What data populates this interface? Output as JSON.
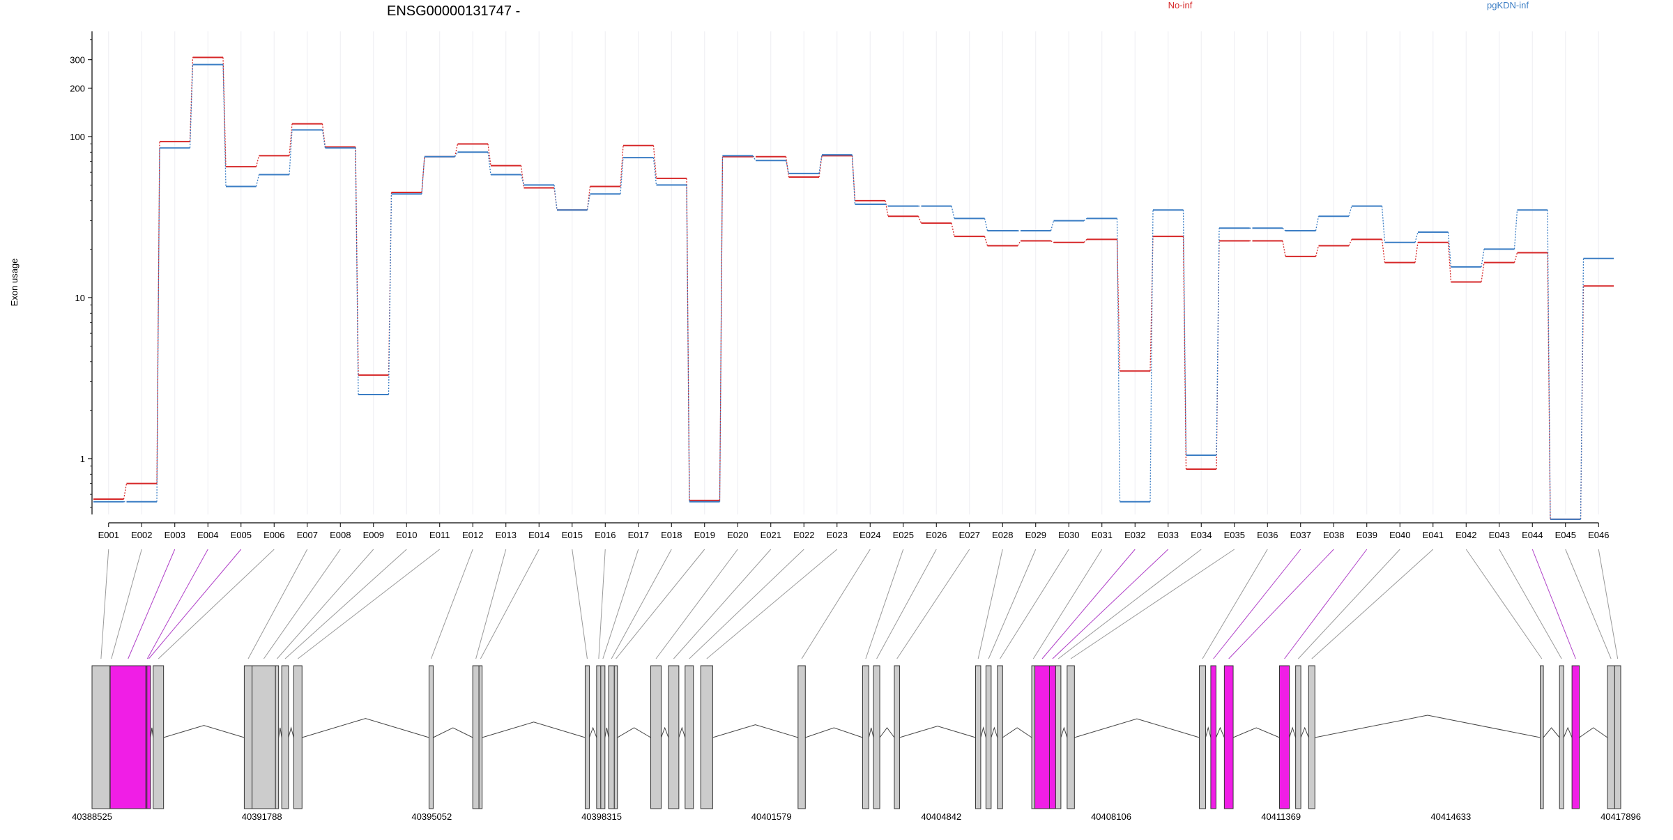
{
  "chart_data": {
    "type": "line",
    "title": "ENSG00000131747 -",
    "ylabel": "Exon usage",
    "xlabel": "",
    "yscale": "log",
    "ylim": [
      0.45,
      450
    ],
    "grid": true,
    "legend_position": "top",
    "y_ticks": [
      {
        "value": 1,
        "label": "1"
      },
      {
        "value": 10,
        "label": "10"
      },
      {
        "value": 100,
        "label": "100"
      },
      {
        "value": 200,
        "label": "200"
      },
      {
        "value": 300,
        "label": "300"
      }
    ],
    "categories": [
      "E001",
      "E002",
      "E003",
      "E004",
      "E005",
      "E006",
      "E007",
      "E008",
      "E009",
      "E010",
      "E011",
      "E012",
      "E013",
      "E014",
      "E015",
      "E016",
      "E017",
      "E018",
      "E019",
      "E020",
      "E021",
      "E022",
      "E023",
      "E024",
      "E025",
      "E026",
      "E027",
      "E028",
      "E029",
      "E030",
      "E031",
      "E032",
      "E033",
      "E034",
      "E035",
      "E036",
      "E037",
      "E038",
      "E039",
      "E040",
      "E041",
      "E042",
      "E043",
      "E044",
      "E045",
      "E046"
    ],
    "series": [
      {
        "name": "No-inf",
        "color": "#d62728",
        "values": [
          0.56,
          0.7,
          93,
          310,
          65,
          76,
          120,
          86,
          3.3,
          45,
          75,
          90,
          66,
          48,
          35,
          49,
          88,
          55,
          0.55,
          75,
          75,
          56,
          76,
          40,
          32,
          29,
          24,
          21,
          22.5,
          22,
          23,
          3.5,
          24,
          0.86,
          22.5,
          22.5,
          18,
          21,
          23,
          16.5,
          22,
          12.5,
          16.5,
          19,
          0.42,
          11.8
        ]
      },
      {
        "name": "pgKDN-inf",
        "color": "#3a7dc4",
        "values": [
          0.54,
          0.54,
          85,
          280,
          49,
          58,
          110,
          85,
          2.5,
          44,
          75,
          80,
          58,
          50,
          35,
          44,
          74,
          50,
          0.54,
          76,
          71,
          59,
          77,
          38,
          37,
          37,
          31,
          26,
          26,
          30,
          31,
          0.54,
          35,
          1.05,
          27,
          27,
          26,
          32,
          37,
          22,
          25.5,
          15.5,
          20,
          35,
          0.42,
          17.5
        ]
      }
    ],
    "gene_model": {
      "coordinate_labels": [
        "40388525",
        "40391788",
        "40395052",
        "40398315",
        "40401579",
        "40404842",
        "40408106",
        "40411369",
        "40414633",
        "40417896"
      ],
      "coordinate_range": [
        40388525,
        40417896
      ],
      "highlight_color": "#f01ee6",
      "exon_fill": "#cccccc",
      "exons": [
        {
          "id": "E001",
          "start": 40388525,
          "end": 40388870,
          "highlighted": false
        },
        {
          "id": "E002",
          "start": 40388870,
          "end": 40388875,
          "highlighted": false
        },
        {
          "id": "E003",
          "start": 40388875,
          "end": 40389560,
          "highlighted": true
        },
        {
          "id": "E004",
          "start": 40389560,
          "end": 40389580,
          "highlighted": true
        },
        {
          "id": "E005",
          "start": 40389580,
          "end": 40389650,
          "highlighted": true
        },
        {
          "id": "E006",
          "start": 40389700,
          "end": 40389900,
          "highlighted": false
        },
        {
          "id": "E007",
          "start": 40391450,
          "end": 40391600,
          "highlighted": false
        },
        {
          "id": "E008",
          "start": 40391600,
          "end": 40392050,
          "highlighted": false
        },
        {
          "id": "E009",
          "start": 40392050,
          "end": 40392110,
          "highlighted": false
        },
        {
          "id": "E010",
          "start": 40392170,
          "end": 40392300,
          "highlighted": false
        },
        {
          "id": "E011",
          "start": 40392400,
          "end": 40392560,
          "highlighted": false
        },
        {
          "id": "E012",
          "start": 40395000,
          "end": 40395080,
          "highlighted": false
        },
        {
          "id": "E013",
          "start": 40395840,
          "end": 40395960,
          "highlighted": false
        },
        {
          "id": "E014",
          "start": 40395960,
          "end": 40396020,
          "highlighted": false
        },
        {
          "id": "E015",
          "start": 40398000,
          "end": 40398080,
          "highlighted": false
        },
        {
          "id": "E016",
          "start": 40398220,
          "end": 40398300,
          "highlighted": false
        },
        {
          "id": "E017",
          "start": 40398300,
          "end": 40398380,
          "highlighted": false
        },
        {
          "id": "E018",
          "start": 40398450,
          "end": 40398560,
          "highlighted": false
        },
        {
          "id": "E019",
          "start": 40398560,
          "end": 40398620,
          "highlighted": false
        },
        {
          "id": "E020",
          "start": 40399260,
          "end": 40399460,
          "highlighted": false
        },
        {
          "id": "E021",
          "start": 40399600,
          "end": 40399800,
          "highlighted": false
        },
        {
          "id": "E022",
          "start": 40399920,
          "end": 40400080,
          "highlighted": false
        },
        {
          "id": "E023",
          "start": 40400220,
          "end": 40400450,
          "highlighted": false
        },
        {
          "id": "E024",
          "start": 40402090,
          "end": 40402230,
          "highlighted": false
        },
        {
          "id": "E025",
          "start": 40403330,
          "end": 40403450,
          "highlighted": false
        },
        {
          "id": "E026",
          "start": 40403540,
          "end": 40403660,
          "highlighted": false
        },
        {
          "id": "E027",
          "start": 40403940,
          "end": 40404040,
          "highlighted": false
        },
        {
          "id": "E028",
          "start": 40405500,
          "end": 40405600,
          "highlighted": false
        },
        {
          "id": "E029",
          "start": 40405700,
          "end": 40405800,
          "highlighted": false
        },
        {
          "id": "E030",
          "start": 40405920,
          "end": 40406020,
          "highlighted": false
        },
        {
          "id": "E031",
          "start": 40406580,
          "end": 40406640,
          "highlighted": false
        },
        {
          "id": "E032",
          "start": 40406640,
          "end": 40406920,
          "highlighted": true
        },
        {
          "id": "E033",
          "start": 40406920,
          "end": 40407040,
          "highlighted": true
        },
        {
          "id": "E034",
          "start": 40407040,
          "end": 40407140,
          "highlighted": false
        },
        {
          "id": "E035",
          "start": 40407260,
          "end": 40407400,
          "highlighted": false
        },
        {
          "id": "E036",
          "start": 40409800,
          "end": 40409920,
          "highlighted": false
        },
        {
          "id": "E037",
          "start": 40410020,
          "end": 40410120,
          "highlighted": true
        },
        {
          "id": "E038",
          "start": 40410280,
          "end": 40410450,
          "highlighted": true
        },
        {
          "id": "E039",
          "start": 40411340,
          "end": 40411530,
          "highlighted": true
        },
        {
          "id": "E040",
          "start": 40411650,
          "end": 40411750,
          "highlighted": false
        },
        {
          "id": "E041",
          "start": 40411900,
          "end": 40412020,
          "highlighted": false
        },
        {
          "id": "E042",
          "start": 40416350,
          "end": 40416410,
          "highlighted": false
        },
        {
          "id": "E043",
          "start": 40416720,
          "end": 40416800,
          "highlighted": false
        },
        {
          "id": "E044",
          "start": 40416960,
          "end": 40417100,
          "highlighted": true
        },
        {
          "id": "E045",
          "start": 40417640,
          "end": 40417780,
          "highlighted": false
        },
        {
          "id": "E046",
          "start": 40417780,
          "end": 40417896,
          "highlighted": false
        }
      ],
      "introns": [
        [
          40389650,
          40389700
        ],
        [
          40389900,
          40391450
        ],
        [
          40392110,
          40392170
        ],
        [
          40392300,
          40392400
        ],
        [
          40392560,
          40395000
        ],
        [
          40395080,
          40395840
        ],
        [
          40396020,
          40398000
        ],
        [
          40398080,
          40398220
        ],
        [
          40398380,
          40398450
        ],
        [
          40398620,
          40399260
        ],
        [
          40399460,
          40399600
        ],
        [
          40399800,
          40399920
        ],
        [
          40400450,
          40402090
        ],
        [
          40402230,
          40403330
        ],
        [
          40403450,
          40403540
        ],
        [
          40403660,
          40403940
        ],
        [
          40404040,
          40405500
        ],
        [
          40405600,
          40405700
        ],
        [
          40405800,
          40405920
        ],
        [
          40406020,
          40406580
        ],
        [
          40407140,
          40407260
        ],
        [
          40407400,
          40409800
        ],
        [
          40409920,
          40410020
        ],
        [
          40410120,
          40410280
        ],
        [
          40410450,
          40411340
        ],
        [
          40411530,
          40411650
        ],
        [
          40411750,
          40411900
        ],
        [
          40412020,
          40416350
        ],
        [
          40416410,
          40416720
        ],
        [
          40416800,
          40416960
        ],
        [
          40417100,
          40417640
        ]
      ]
    }
  }
}
